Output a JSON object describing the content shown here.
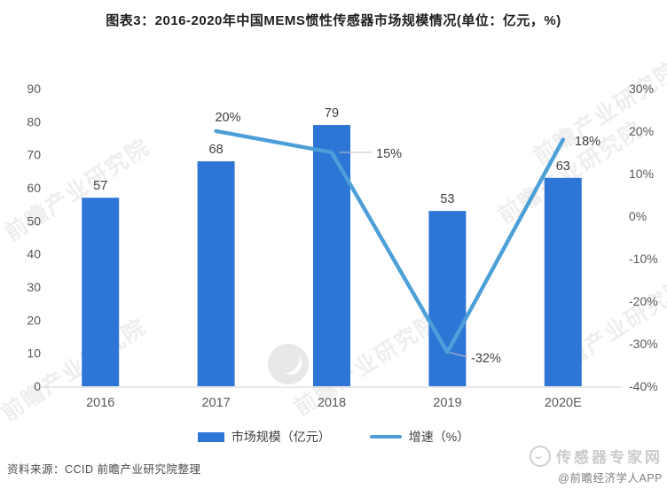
{
  "title": "图表3：2016-2020年中国MEMS惯性传感器市场规模情况(单位：亿元，%)",
  "chart_data": {
    "type": "bar",
    "subtype": "bar+line combo, dual axis",
    "categories": [
      "2016",
      "2017",
      "2018",
      "2019",
      "2020E"
    ],
    "series": [
      {
        "name": "市场规模（亿元）",
        "type": "bar",
        "axis": "left",
        "values": [
          57,
          68,
          79,
          53,
          63
        ],
        "value_labels": [
          "57",
          "68",
          "79",
          "53",
          "63"
        ]
      },
      {
        "name": "增速（%）",
        "type": "line",
        "axis": "right",
        "values": [
          null,
          20,
          15,
          -32,
          18
        ],
        "value_labels": [
          "",
          "20%",
          "15%",
          "-32%",
          "18%"
        ]
      }
    ],
    "left_axis": {
      "min": 0,
      "max": 90,
      "step": 10,
      "ticks": [
        "0",
        "10",
        "20",
        "30",
        "40",
        "50",
        "60",
        "70",
        "80",
        "90"
      ]
    },
    "right_axis": {
      "min": -40,
      "max": 30,
      "step": 10,
      "ticks": [
        "-40%",
        "-30%",
        "-20%",
        "-10%",
        "0%",
        "10%",
        "20%",
        "30%"
      ]
    },
    "grid": "off",
    "legend_position": "bottom",
    "colors": {
      "bar": "#2E76D5",
      "line": "#4C9FD8",
      "axis": "#D9D9D9",
      "leader": "#BFBFBF"
    }
  },
  "legend": {
    "items": [
      {
        "label": "市场规模（亿元）"
      },
      {
        "label": "增速（%）"
      }
    ]
  },
  "source": "资料来源：CCID 前瞻产业研究院整理",
  "brand": {
    "name": "传感器专家网",
    "credit": "@前瞻经济学人APP"
  },
  "watermark": {
    "text": "前瞻产业研究院"
  }
}
